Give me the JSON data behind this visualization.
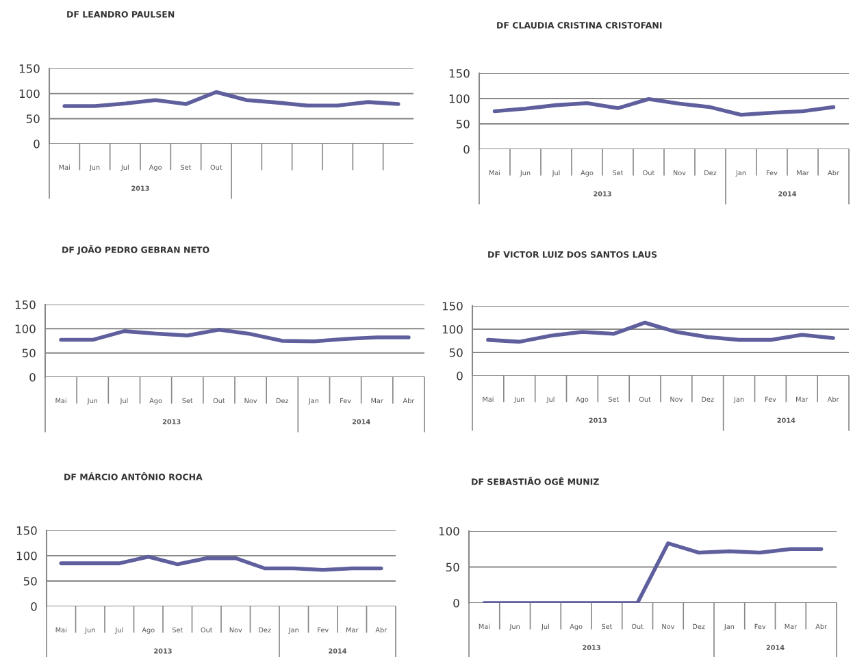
{
  "chart_data": [
    {
      "type": "line",
      "title": "DF LEANDRO PAULSEN",
      "categories": [
        "Mai",
        "Jun",
        "Jul",
        "Ago",
        "Set",
        "Out",
        null,
        null,
        null,
        null,
        null,
        null
      ],
      "ylim": [
        0,
        150
      ],
      "yticks": [
        0,
        50,
        100,
        150
      ],
      "grid": "y",
      "annotations": [
        "2013"
      ],
      "series": [
        {
          "color": "#5f5f9e",
          "values": [
            75,
            75,
            80,
            87,
            79,
            103,
            87,
            82,
            76,
            76,
            83,
            79
          ]
        }
      ]
    },
    {
      "type": "line",
      "title": "DF CLAUDIA CRISTINA CRISTOFANI",
      "categories": [
        "Mai",
        "Jun",
        "Jul",
        "Ago",
        "Set",
        "Out",
        "Nov",
        "Dez",
        "Jan",
        "Fev",
        "Mar",
        "Abr"
      ],
      "ylim": [
        0,
        150
      ],
      "yticks": [
        0,
        50,
        100,
        150
      ],
      "grid": "y",
      "annotations": [
        "2013",
        "2014"
      ],
      "series": [
        {
          "color": "#5f5f9e",
          "values": [
            75,
            80,
            87,
            91,
            81,
            99,
            90,
            83,
            68,
            72,
            75,
            83
          ]
        }
      ]
    },
    {
      "type": "line",
      "title": "DF JOÃO PEDRO GEBRAN NETO",
      "categories": [
        "Mai",
        "Jun",
        "Jul",
        "Ago",
        "Set",
        "Out",
        "Nov",
        "Dez",
        "Jan",
        "Fev",
        "Mar",
        "Abr"
      ],
      "ylim": [
        0,
        150
      ],
      "yticks": [
        0,
        50,
        100,
        150
      ],
      "grid": "y",
      "annotations": [
        "2013",
        "2014"
      ],
      "series": [
        {
          "color": "#5f5f9e",
          "values": [
            77,
            77,
            95,
            90,
            86,
            98,
            89,
            75,
            74,
            79,
            82,
            82
          ]
        }
      ]
    },
    {
      "type": "line",
      "title": "DF VICTOR LUIZ DOS SANTOS LAUS",
      "categories": [
        "Mai",
        "Jun",
        "Jul",
        "Ago",
        "Set",
        "Out",
        "Nov",
        "Dez",
        "Jan",
        "Fev",
        "Mar",
        "Abr"
      ],
      "ylim": [
        0,
        150
      ],
      "yticks": [
        0,
        50,
        100,
        150
      ],
      "grid": "y",
      "annotations": [
        "2013",
        "2014"
      ],
      "series": [
        {
          "color": "#5f5f9e",
          "values": [
            77,
            73,
            86,
            94,
            90,
            114,
            94,
            83,
            77,
            77,
            88,
            81
          ]
        }
      ]
    },
    {
      "type": "line",
      "title": "DF MÁRCIO ANTÔNIO ROCHA",
      "categories": [
        "Mai",
        "Jun",
        "Jul",
        "Ago",
        "Set",
        "Out",
        "Nov",
        "Dez",
        "Jan",
        "Fev",
        "Mar",
        "Abr"
      ],
      "ylim": [
        0,
        150
      ],
      "yticks": [
        0,
        50,
        100,
        150
      ],
      "grid": "y",
      "annotations": [
        "2013",
        "2014"
      ],
      "series": [
        {
          "color": "#5f5f9e",
          "values": [
            85,
            85,
            85,
            98,
            83,
            95,
            95,
            75,
            75,
            72,
            75,
            75
          ]
        }
      ]
    },
    {
      "type": "line",
      "title": "DF SEBASTIÃO OGÊ MUNIZ",
      "categories": [
        "Mai",
        "Jun",
        "Jul",
        "Ago",
        "Set",
        "Out",
        "Nov",
        "Dez",
        "Jan",
        "Fev",
        "Mar",
        "Abr"
      ],
      "ylim": [
        0,
        100
      ],
      "yticks": [
        0,
        50,
        100
      ],
      "grid": "y",
      "annotations": [
        "2013",
        "2014"
      ],
      "series": [
        {
          "color": "#5f5f9e",
          "values": [
            0,
            0,
            0,
            0,
            0,
            0,
            83,
            70,
            72,
            70,
            75,
            75
          ]
        }
      ]
    }
  ]
}
